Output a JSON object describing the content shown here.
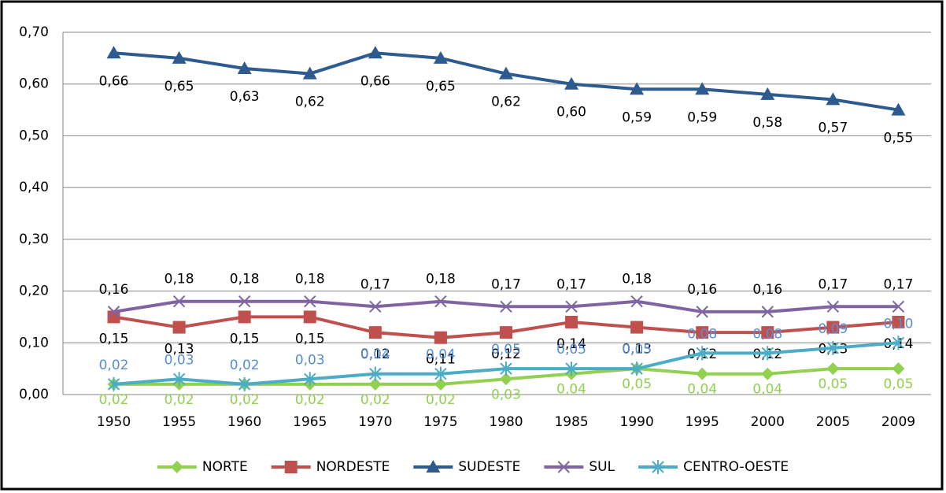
{
  "chart_data": {
    "type": "line",
    "categories": [
      "1950",
      "1955",
      "1960",
      "1965",
      "1970",
      "1975",
      "1980",
      "1985",
      "1990",
      "1995",
      "2000",
      "2005",
      "2009"
    ],
    "ylim": [
      0,
      0.7
    ],
    "yticks": [
      {
        "value": 0,
        "label": "0,00"
      },
      {
        "value": 0.1,
        "label": "0,10"
      },
      {
        "value": 0.2,
        "label": "0,20"
      },
      {
        "value": 0.3,
        "label": "0,30"
      },
      {
        "value": 0.4,
        "label": "0,40"
      },
      {
        "value": 0.5,
        "label": "0,50"
      },
      {
        "value": 0.6,
        "label": "0,60"
      },
      {
        "value": 0.7,
        "label": "0,70"
      }
    ],
    "grid": true,
    "legend": "bottom",
    "series": [
      {
        "name": "NORTE",
        "color": "#92d050",
        "label_color": "#92d050",
        "marker": "diamond",
        "values": [
          0.02,
          0.02,
          0.02,
          0.02,
          0.02,
          0.02,
          0.03,
          0.04,
          0.05,
          0.04,
          0.04,
          0.05,
          0.05
        ],
        "value_labels": [
          "0,02",
          "0,02",
          "0,02",
          "0,02",
          "0,02",
          "0,02",
          "0,03",
          "0,04",
          "0,05",
          "0,04",
          "0,04",
          "0,05",
          "0,05"
        ]
      },
      {
        "name": "NORDESTE",
        "color": "#c0504d",
        "label_color": "#000000",
        "marker": "square",
        "values": [
          0.15,
          0.13,
          0.15,
          0.15,
          0.12,
          0.11,
          0.12,
          0.14,
          0.13,
          0.12,
          0.12,
          0.13,
          0.14
        ],
        "value_labels": [
          "0,15",
          "0,13",
          "0,15",
          "0,15",
          "0,12",
          "0,11",
          "0,12",
          "0,14",
          "0,13",
          "0,12",
          "0,12",
          "0,13",
          "0,14"
        ]
      },
      {
        "name": "SUDESTE",
        "color": "#2e5b8f",
        "label_color": "#000000",
        "marker": "triangle",
        "values": [
          0.66,
          0.65,
          0.63,
          0.62,
          0.66,
          0.65,
          0.62,
          0.6,
          0.59,
          0.59,
          0.58,
          0.57,
          0.55
        ],
        "value_labels": [
          "0,66",
          "0,65",
          "0,63",
          "0,62",
          "0,66",
          "0,65",
          "0,62",
          "0,60",
          "0,59",
          "0,59",
          "0,58",
          "0,57",
          "0,55"
        ]
      },
      {
        "name": "SUL",
        "color": "#8064a2",
        "label_color": "#000000",
        "marker": "x",
        "values": [
          0.16,
          0.18,
          0.18,
          0.18,
          0.17,
          0.18,
          0.17,
          0.17,
          0.18,
          0.16,
          0.16,
          0.17,
          0.17
        ],
        "value_labels": [
          "0,16",
          "0,18",
          "0,18",
          "0,18",
          "0,17",
          "0,18",
          "0,17",
          "0,17",
          "0,18",
          "0,16",
          "0,16",
          "0,17",
          "0,17"
        ]
      },
      {
        "name": "CENTRO-OESTE",
        "color": "#4bacc6",
        "label_color": "#558ed5",
        "marker": "asterisk",
        "values": [
          0.02,
          0.03,
          0.02,
          0.03,
          0.04,
          0.04,
          0.05,
          0.05,
          0.05,
          0.08,
          0.08,
          0.09,
          0.1
        ],
        "value_labels": [
          "0,02",
          "0,03",
          "0,02",
          "0,03",
          "0,04",
          "0,04",
          "0,05",
          "0,05",
          "0,05",
          "0,08",
          "0,08",
          "0,09",
          "0,10"
        ]
      }
    ]
  }
}
